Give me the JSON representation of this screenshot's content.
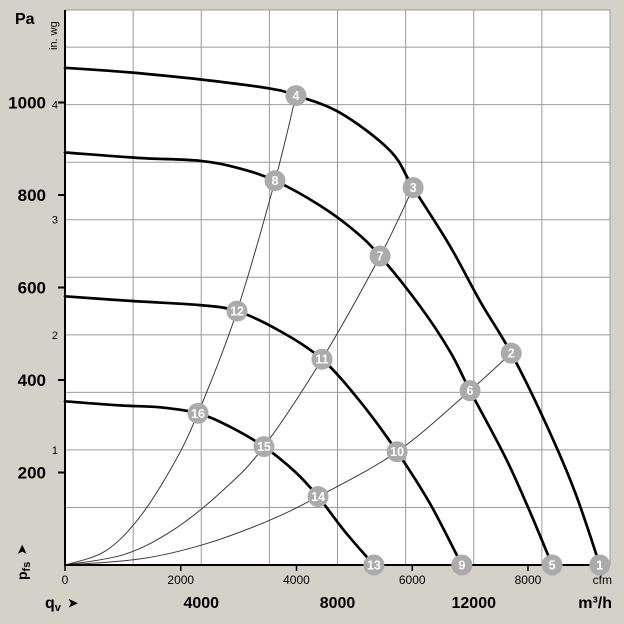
{
  "labels": {
    "pa": "Pa",
    "in_wg": "in. wg",
    "cfm": "cfm",
    "m3h": "m³/h",
    "pressure_symbol": "p",
    "pressure_symbol_sub": "fs",
    "flow_symbol": "q",
    "flow_symbol_sub": "v",
    "arrow": "➤"
  },
  "chart_data": {
    "type": "line",
    "title": "Fan performance curves: static pressure vs. volume flow",
    "grid": true,
    "colors": {
      "background": "#d4d1c9",
      "plot_background": "#ffffff",
      "grid": "#9b9b9b",
      "curve": "#000000",
      "system_curve": "#3a3a3a",
      "marker_fill": "#ababab",
      "marker_text": "#ffffff",
      "axis": "#000000"
    },
    "x_axis": {
      "label": "qv",
      "unit_primary": "m³/h",
      "unit_secondary": "cfm",
      "range": [
        0,
        16000
      ],
      "grid_step": 2000,
      "primary_ticks": [
        4000,
        8000,
        12000
      ],
      "secondary_ticks_cfm": [
        0,
        2000,
        4000,
        6000,
        8000
      ],
      "cfm_to_m3h": 1.69901
    },
    "y_axis": {
      "label": "pfs",
      "unit_primary": "Pa",
      "unit_secondary": "in. wg",
      "range": [
        0,
        1200
      ],
      "grid_step_inwg": 0.5,
      "primary_ticks_pa": [
        200,
        400,
        600,
        800,
        1000
      ],
      "secondary_ticks_inwg": [
        1,
        2,
        3,
        4
      ],
      "inwg_to_pa": 248.84
    },
    "fan_curves": [
      {
        "id": "speed-1",
        "points": [
          [
            0,
            1075
          ],
          [
            1900,
            1065
          ],
          [
            3960,
            1050
          ],
          [
            6020,
            1030
          ],
          [
            6780,
            1015
          ],
          [
            8070,
            978
          ],
          [
            9540,
            896
          ],
          [
            10220,
            816
          ],
          [
            11300,
            690
          ],
          [
            12180,
            571
          ],
          [
            13100,
            458
          ],
          [
            14090,
            310
          ],
          [
            14970,
            158
          ],
          [
            15700,
            0
          ]
        ]
      },
      {
        "id": "speed-2",
        "points": [
          [
            0,
            892
          ],
          [
            2200,
            880
          ],
          [
            3960,
            874
          ],
          [
            5140,
            857
          ],
          [
            6165,
            831
          ],
          [
            7490,
            777
          ],
          [
            8510,
            722
          ],
          [
            9250,
            668
          ],
          [
            10420,
            560
          ],
          [
            11300,
            462
          ],
          [
            11890,
            377
          ],
          [
            12920,
            234
          ],
          [
            13650,
            115
          ],
          [
            14300,
            0
          ]
        ]
      },
      {
        "id": "speed-3",
        "points": [
          [
            0,
            581
          ],
          [
            1910,
            571
          ],
          [
            3960,
            562
          ],
          [
            5050,
            549
          ],
          [
            6310,
            506
          ],
          [
            7545,
            445
          ],
          [
            8660,
            354
          ],
          [
            9750,
            245
          ],
          [
            10720,
            132
          ],
          [
            11650,
            0
          ]
        ]
      },
      {
        "id": "speed-4",
        "points": [
          [
            0,
            354
          ],
          [
            1620,
            345
          ],
          [
            2790,
            341
          ],
          [
            3905,
            328
          ],
          [
            4840,
            299
          ],
          [
            5840,
            256
          ],
          [
            6750,
            202
          ],
          [
            7430,
            148
          ],
          [
            8220,
            72
          ],
          [
            9070,
            0
          ]
        ]
      }
    ],
    "markers": [
      {
        "label": "1",
        "qv": 15700,
        "pa": 0
      },
      {
        "label": "2",
        "qv": 13100,
        "pa": 458
      },
      {
        "label": "3",
        "qv": 10220,
        "pa": 816
      },
      {
        "label": "4",
        "qv": 6780,
        "pa": 1015
      },
      {
        "label": "5",
        "qv": 14300,
        "pa": 0
      },
      {
        "label": "6",
        "qv": 11890,
        "pa": 377
      },
      {
        "label": "7",
        "qv": 9250,
        "pa": 668
      },
      {
        "label": "8",
        "qv": 6165,
        "pa": 831
      },
      {
        "label": "9",
        "qv": 11650,
        "pa": 0
      },
      {
        "label": "10",
        "qv": 9750,
        "pa": 245
      },
      {
        "label": "11",
        "qv": 7545,
        "pa": 445
      },
      {
        "label": "12",
        "qv": 5050,
        "pa": 549
      },
      {
        "label": "13",
        "qv": 9070,
        "pa": 0
      },
      {
        "label": "14",
        "qv": 7430,
        "pa": 148
      },
      {
        "label": "15",
        "qv": 5840,
        "pa": 256
      },
      {
        "label": "16",
        "qv": 3905,
        "pa": 328
      }
    ],
    "system_curves": [
      [
        "16",
        "12",
        "8",
        "4"
      ],
      [
        "15",
        "11",
        "7",
        "3"
      ],
      [
        "14",
        "10",
        "6",
        "2"
      ]
    ]
  }
}
